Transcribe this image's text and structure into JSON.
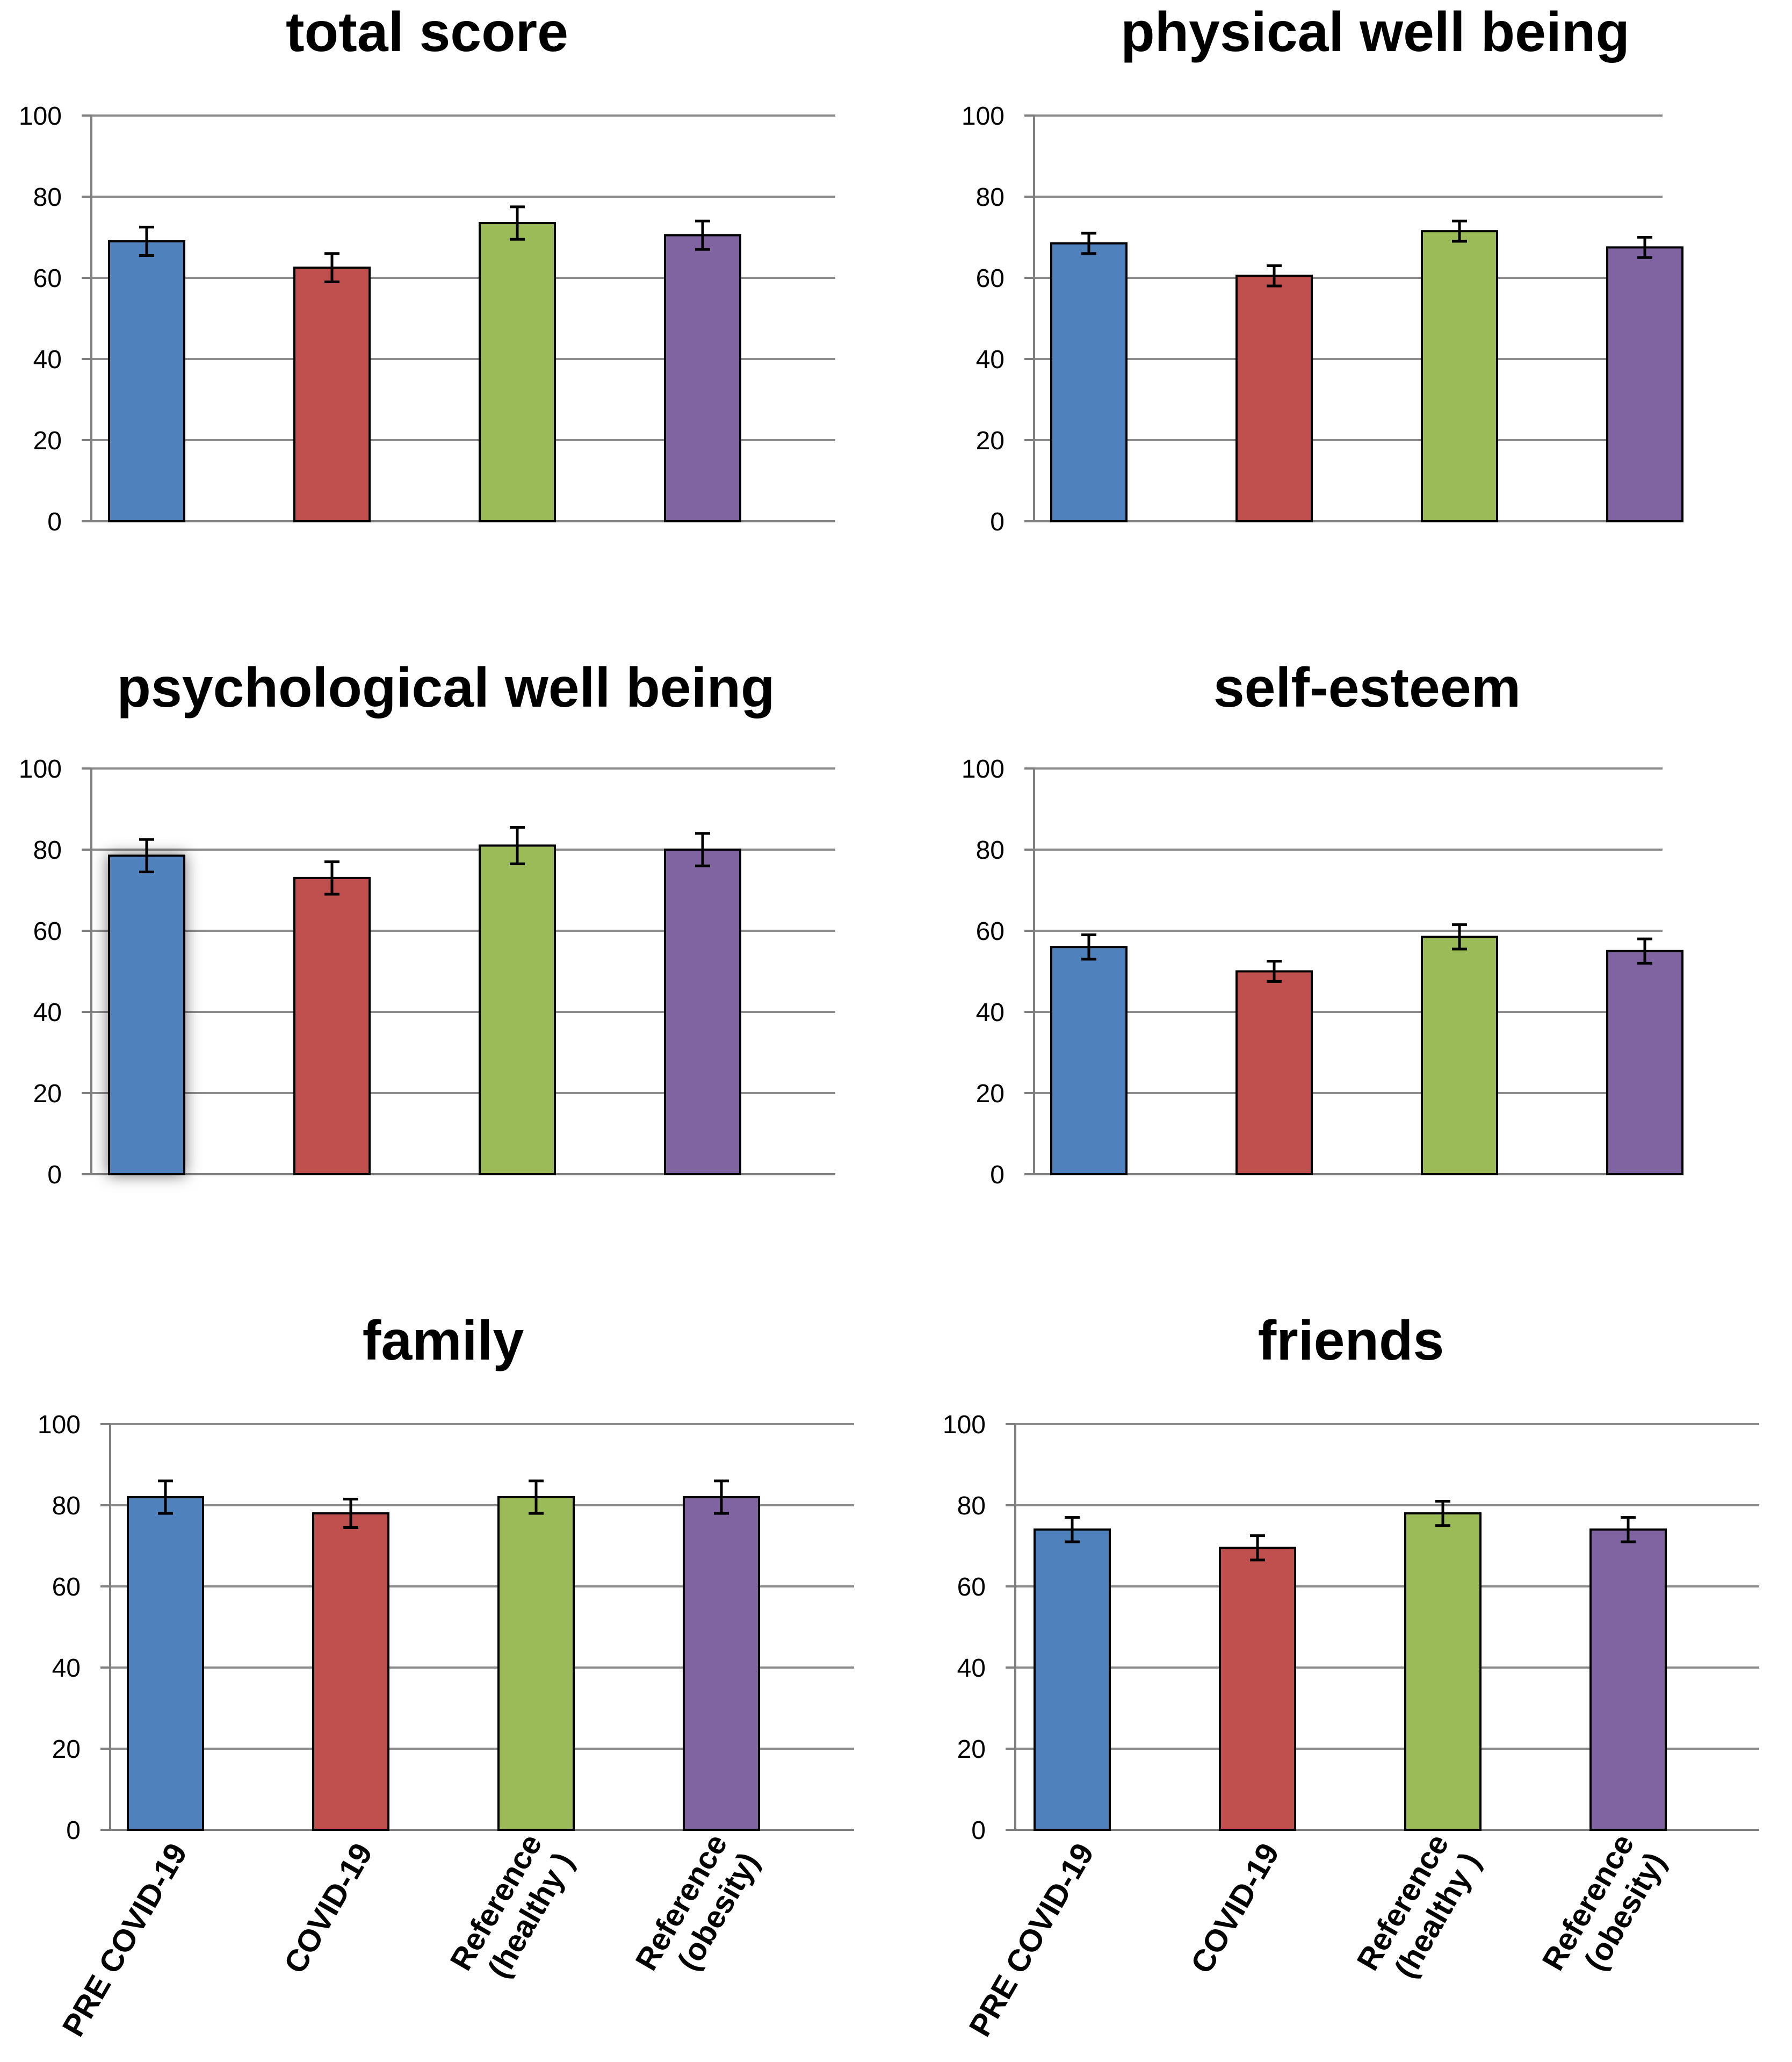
{
  "chart_data": [
    {
      "type": "bar",
      "title": "total score",
      "categories": [
        "PRE COVID-19",
        "COVID-19",
        "Reference (healthy )",
        "Reference (obesity)"
      ],
      "values": [
        69,
        62.5,
        73.5,
        70.5
      ],
      "errors": [
        3.5,
        3.5,
        4,
        3.5
      ],
      "ylim": [
        0,
        100
      ],
      "yticks": [
        "0",
        "20",
        "40",
        "60",
        "80",
        "100"
      ],
      "xlabel": "",
      "ylabel": ""
    },
    {
      "type": "bar",
      "title": "physical well being",
      "categories": [
        "PRE COVID-19",
        "COVID-19",
        "Reference (healthy )",
        "Reference (obesity)"
      ],
      "values": [
        68.5,
        60.5,
        71.5,
        67.5
      ],
      "errors": [
        2.5,
        2.5,
        2.5,
        2.5
      ],
      "ylim": [
        0,
        100
      ],
      "yticks": [
        "0",
        "20",
        "40",
        "60",
        "80",
        "100"
      ],
      "xlabel": "",
      "ylabel": ""
    },
    {
      "type": "bar",
      "title": "psychological well being",
      "categories": [
        "PRE COVID-19",
        "COVID-19",
        "Reference (healthy )",
        "Reference (obesity)"
      ],
      "values": [
        78.5,
        73,
        81,
        80
      ],
      "errors": [
        4,
        4,
        4.5,
        4
      ],
      "ylim": [
        0,
        100
      ],
      "yticks": [
        "0",
        "20",
        "40",
        "60",
        "80",
        "100"
      ],
      "xlabel": "",
      "ylabel": ""
    },
    {
      "type": "bar",
      "title": "self-esteem",
      "categories": [
        "PRE COVID-19",
        "COVID-19",
        "Reference (healthy )",
        "Reference (obesity)"
      ],
      "values": [
        56,
        50,
        58.5,
        55
      ],
      "errors": [
        3,
        2.5,
        3,
        3
      ],
      "ylim": [
        0,
        100
      ],
      "yticks": [
        "0",
        "20",
        "40",
        "60",
        "80",
        "100"
      ],
      "xlabel": "",
      "ylabel": ""
    },
    {
      "type": "bar",
      "title": "family",
      "categories": [
        "PRE COVID-19",
        "COVID-19",
        "Reference (healthy )",
        "Reference (obesity)"
      ],
      "values": [
        82,
        78,
        82,
        82
      ],
      "errors": [
        4,
        3.5,
        4,
        4
      ],
      "ylim": [
        0,
        100
      ],
      "yticks": [
        "0",
        "20",
        "40",
        "60",
        "80",
        "100"
      ],
      "xlabel": "",
      "ylabel": ""
    },
    {
      "type": "bar",
      "title": "friends",
      "categories": [
        "PRE COVID-19",
        "COVID-19",
        "Reference (healthy )",
        "Reference (obesity)"
      ],
      "values": [
        74,
        69.5,
        78,
        74
      ],
      "errors": [
        3,
        3,
        3,
        3
      ],
      "ylim": [
        0,
        100
      ],
      "yticks": [
        "0",
        "20",
        "40",
        "60",
        "80",
        "100"
      ],
      "xlabel": "",
      "ylabel": ""
    }
  ],
  "x_axis_labels": [
    [
      "PRE COVID-19"
    ],
    [
      "COVID-19"
    ],
    [
      "Reference",
      "(healthy )"
    ],
    [
      "Reference",
      "(obesity)"
    ]
  ],
  "colors": {
    "series": [
      "#4f81bd",
      "#c0504d",
      "#9bbb59",
      "#8064a2"
    ],
    "grid": "#8c8c8c",
    "axis": "#7f7f7f",
    "outline": "#000000"
  }
}
